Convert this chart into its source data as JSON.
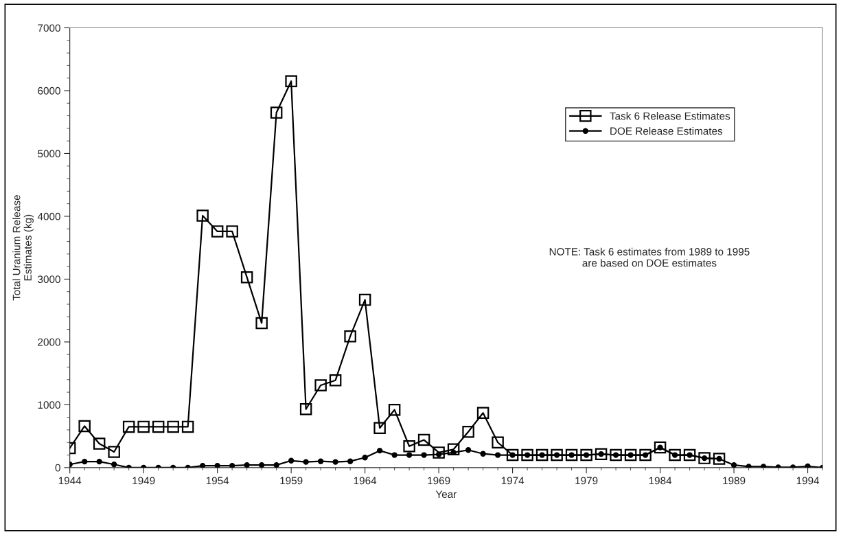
{
  "chart_data": {
    "type": "line",
    "xlabel": "Year",
    "ylabel": "Total Uranium Release\nEstimates (kg)",
    "xlim": [
      1944,
      1995
    ],
    "xticks": [
      1944,
      1949,
      1954,
      1959,
      1964,
      1969,
      1974,
      1979,
      1984,
      1989,
      1994
    ],
    "ylim": [
      0,
      7000
    ],
    "yticks": [
      0,
      1000,
      2000,
      3000,
      4000,
      5000,
      6000,
      7000
    ],
    "grid": false,
    "legend": "top right",
    "annotations": [
      "NOTE: Task 6 estimates from 1989 to 1995\nare based on DOE estimates"
    ],
    "series": [
      {
        "name": "Task 6 Release Estimates",
        "color": "#000000",
        "marker": "square",
        "x": [
          1944,
          1945,
          1946,
          1947,
          1948,
          1949,
          1950,
          1951,
          1952,
          1953,
          1954,
          1955,
          1956,
          1957,
          1958,
          1959,
          1960,
          1961,
          1962,
          1963,
          1964,
          1965,
          1966,
          1967,
          1968,
          1969,
          1970,
          1971,
          1972,
          1973,
          1974,
          1975,
          1976,
          1977,
          1978,
          1979,
          1980,
          1981,
          1982,
          1983,
          1984,
          1985,
          1986,
          1987,
          1988
        ],
        "values": [
          310,
          660,
          380,
          250,
          650,
          650,
          650,
          650,
          650,
          4010,
          3760,
          3760,
          3030,
          2300,
          5650,
          6150,
          930,
          1310,
          1390,
          2090,
          2670,
          630,
          920,
          340,
          440,
          240,
          290,
          570,
          870,
          400,
          200,
          200,
          200,
          200,
          200,
          200,
          215,
          200,
          200,
          200,
          320,
          200,
          200,
          150,
          140
        ]
      },
      {
        "name": "DOE Release Estimates",
        "color": "#000000",
        "marker": "circle",
        "x": [
          1944,
          1945,
          1946,
          1947,
          1948,
          1949,
          1950,
          1951,
          1952,
          1953,
          1954,
          1955,
          1956,
          1957,
          1958,
          1959,
          1960,
          1961,
          1962,
          1963,
          1964,
          1965,
          1966,
          1967,
          1968,
          1969,
          1970,
          1971,
          1972,
          1973,
          1974,
          1975,
          1976,
          1977,
          1978,
          1979,
          1980,
          1981,
          1982,
          1983,
          1984,
          1985,
          1986,
          1987,
          1988,
          1989,
          1990,
          1991,
          1992,
          1993,
          1994,
          1995
        ],
        "values": [
          50,
          95,
          95,
          50,
          0,
          0,
          0,
          0,
          0,
          30,
          30,
          30,
          40,
          40,
          40,
          110,
          90,
          100,
          90,
          100,
          160,
          270,
          200,
          200,
          200,
          210,
          240,
          280,
          220,
          200,
          200,
          200,
          200,
          200,
          200,
          200,
          215,
          200,
          200,
          200,
          320,
          200,
          200,
          150,
          140,
          40,
          15,
          15,
          5,
          5,
          20,
          0
        ]
      }
    ]
  }
}
